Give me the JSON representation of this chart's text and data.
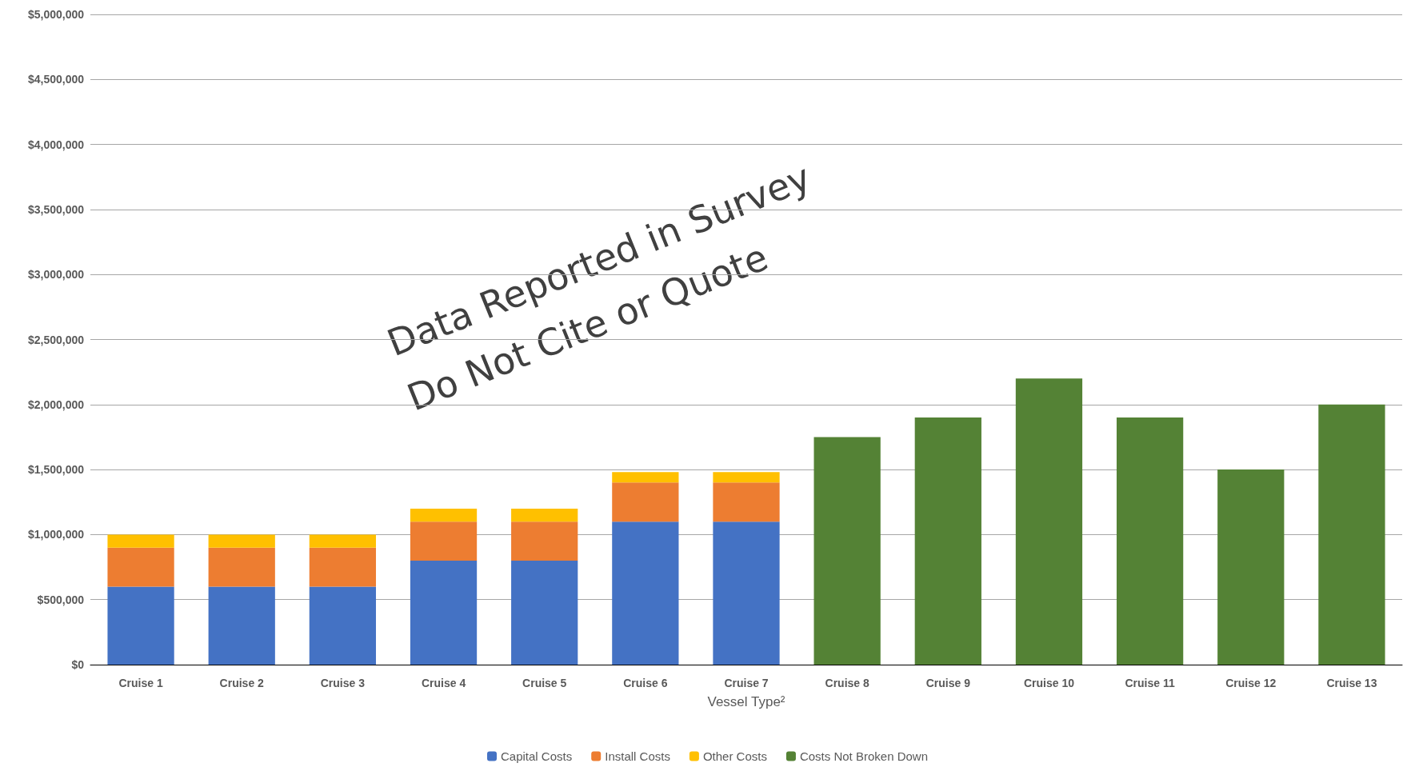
{
  "chart_data": {
    "type": "bar",
    "stacked": true,
    "xlabel": "Vessel Type²",
    "categories": [
      "Cruise 1",
      "Cruise 2",
      "Cruise 3",
      "Cruise 4",
      "Cruise 5",
      "Cruise 6",
      "Cruise 7",
      "Cruise 8",
      "Cruise 9",
      "Cruise 10",
      "Cruise 11",
      "Cruise 12",
      "Cruise 13"
    ],
    "series": [
      {
        "name": "Capital Costs",
        "color": "#4472c4",
        "values": [
          600000,
          600000,
          600000,
          800000,
          800000,
          1100000,
          1100000,
          null,
          null,
          null,
          null,
          null,
          null
        ]
      },
      {
        "name": "Install Costs",
        "color": "#ed7d31",
        "values": [
          300000,
          300000,
          300000,
          300000,
          300000,
          300000,
          300000,
          null,
          null,
          null,
          null,
          null,
          null
        ]
      },
      {
        "name": "Other Costs",
        "color": "#ffc000",
        "values": [
          100000,
          100000,
          100000,
          100000,
          100000,
          80000,
          80000,
          null,
          null,
          null,
          null,
          null,
          null
        ]
      },
      {
        "name": "Costs Not Broken Down",
        "color": "#548235",
        "values": [
          null,
          null,
          null,
          null,
          null,
          null,
          null,
          1750000,
          1900000,
          2200000,
          1900000,
          1500000,
          2000000
        ]
      }
    ],
    "ylim": [
      0,
      5000000
    ],
    "yticks": [
      {
        "value": 0,
        "label": "$0"
      },
      {
        "value": 500000,
        "label": "$500,000"
      },
      {
        "value": 1000000,
        "label": "$1,000,000"
      },
      {
        "value": 1500000,
        "label": "$1,500,000"
      },
      {
        "value": 2000000,
        "label": "$2,000,000"
      },
      {
        "value": 2500000,
        "label": "$2,500,000"
      },
      {
        "value": 3000000,
        "label": "$3,000,000"
      },
      {
        "value": 3500000,
        "label": "$3,500,000"
      },
      {
        "value": 4000000,
        "label": "$4,000,000"
      },
      {
        "value": 4500000,
        "label": "$4,500,000"
      },
      {
        "value": 5000000,
        "label": "$5,000,000"
      }
    ],
    "grid": "y",
    "legend": "bottom",
    "annotations": [
      "Data Reported in Survey",
      "Do Not Cite or Quote"
    ]
  }
}
